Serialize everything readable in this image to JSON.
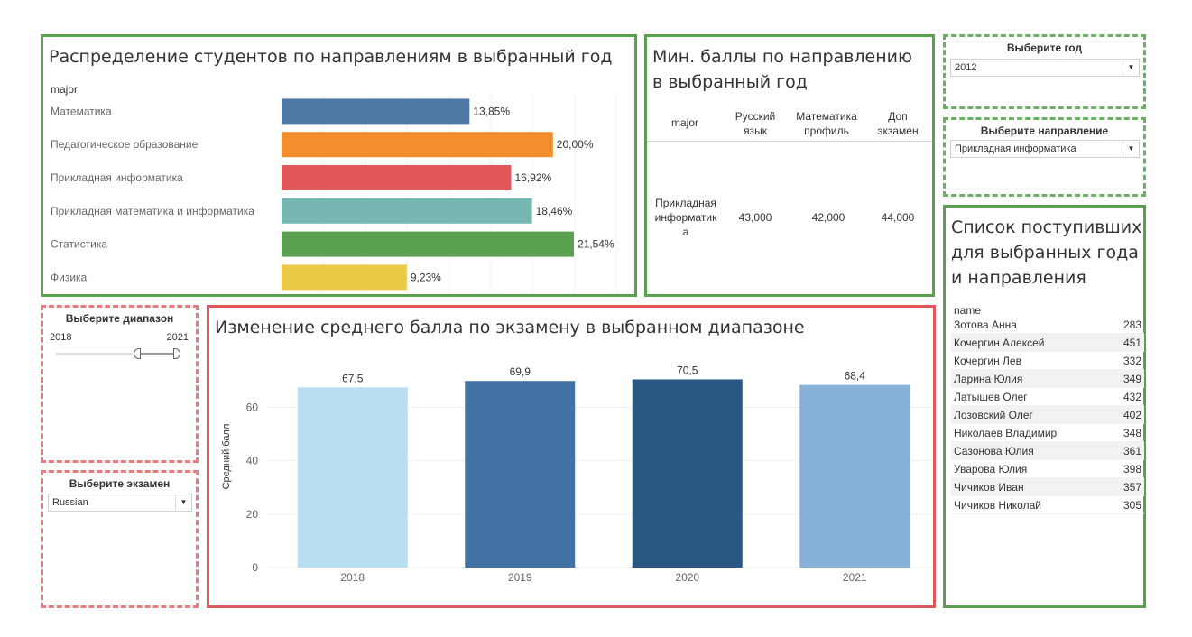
{
  "distribution": {
    "title": "Распределение студентов по направлениям в выбранный год",
    "column_header": "major"
  },
  "min_scores": {
    "title": "Мин. баллы по направлению в выбранный год",
    "headers": {
      "major": "major",
      "russian": "Русский язык",
      "math": "Математика профиль",
      "extra": "Доп экзамен"
    },
    "row": {
      "major": "Прикладная информатика",
      "russian": "43,000",
      "math": "42,000",
      "extra": "44,000"
    }
  },
  "filters": {
    "year": {
      "title": "Выберите год",
      "value": "2012"
    },
    "major": {
      "title": "Выберите направление",
      "value": "Прикладная информатика"
    },
    "range": {
      "title": "Выберите диапазон",
      "min": "2018",
      "max": "2021"
    },
    "exam": {
      "title": "Выберите экзамен",
      "value": "Russian"
    }
  },
  "avg_score": {
    "title": "Изменение среднего балла по экзамену в выбранном диапазоне"
  },
  "admitted": {
    "title": "Список поступивших для выбранных года и направления",
    "column_header": "name",
    "rows": [
      {
        "name": "Зотова Анна",
        "value": "283"
      },
      {
        "name": "Кочергин Алексей",
        "value": "451"
      },
      {
        "name": "Кочергин Лев",
        "value": "332"
      },
      {
        "name": "Ларина Юлия",
        "value": "349"
      },
      {
        "name": "Латышев Олег",
        "value": "432"
      },
      {
        "name": "Лозовский Олег",
        "value": "402"
      },
      {
        "name": "Николаев Владимир",
        "value": "348"
      },
      {
        "name": "Сазонова Юлия",
        "value": "361"
      },
      {
        "name": "Уварова Юлия",
        "value": "398"
      },
      {
        "name": "Чичиков Иван",
        "value": "357"
      },
      {
        "name": "Чичиков Николай",
        "value": "305"
      }
    ]
  },
  "chart_data": [
    {
      "type": "bar",
      "orientation": "horizontal",
      "title": "Распределение студентов по направлениям в выбранный год",
      "categories": [
        "Математика",
        "Педагогическое образование",
        "Прикладная информатика",
        "Прикладная математика и информатика",
        "Статистика",
        "Физика"
      ],
      "values": [
        13.85,
        20.0,
        16.92,
        18.46,
        21.54,
        9.23
      ],
      "labels": [
        "13,85%",
        "20,00%",
        "16,92%",
        "18,46%",
        "21,54%",
        "9,23%"
      ],
      "colors": [
        "#4e79a7",
        "#f28e2b",
        "#e15759",
        "#76b7b2",
        "#59a14f",
        "#edc948"
      ],
      "xlim": [
        0,
        25
      ]
    },
    {
      "type": "bar",
      "title": "Изменение среднего балла по экзамену в выбранном диапазоне",
      "categories": [
        "2018",
        "2019",
        "2020",
        "2021"
      ],
      "values": [
        67.5,
        69.9,
        70.5,
        68.4
      ],
      "labels": [
        "67,5",
        "69,9",
        "70,5",
        "68,4"
      ],
      "colors": [
        "#b9ddf1",
        "#4272a3",
        "#2a5783",
        "#86b2d7"
      ],
      "ylabel": "Средний балл",
      "yticks": [
        0,
        20,
        40,
        60
      ],
      "ylim": [
        0,
        72
      ]
    }
  ]
}
